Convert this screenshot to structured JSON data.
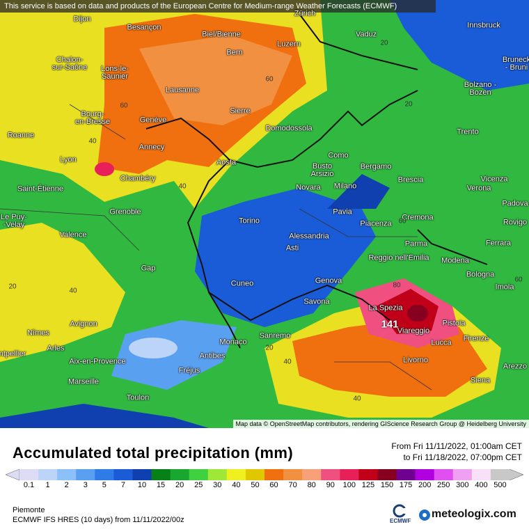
{
  "header": {
    "notice": "This service is based on data and products of the European Centre for Medium-range Weather Forecasts (ECMWF)"
  },
  "map": {
    "cities": [
      "Dijon",
      "Besançon",
      "Zürich",
      "Vaduz",
      "Innsbruck",
      "Bruneck - Bruni",
      "Chalon-\nsur-Saône",
      "Lons-le-\nSaunier",
      "Biel/Bienne",
      "Bern",
      "Luzern",
      "Lausanne",
      "Sierre",
      "Domodossola",
      "Bolzano -\nBozen",
      "Bourg-\nen-Bresse",
      "Genève",
      "Trento",
      "Roanne",
      "Annecy",
      "Como",
      "Aosta",
      "Busto\nArsizio",
      "Bergamo",
      "Lyon",
      "Chambéry",
      "Saint-Étienne",
      "Novara",
      "Milano",
      "Brescia",
      "Verona",
      "Vicenza",
      "Padova",
      "Grenoble",
      "Le Puy-\n-Velay",
      "Pavia",
      "Cremona",
      "Piacenza",
      "Torino",
      "Rovigo",
      "Valence",
      "Alessandria",
      "Asti",
      "Parma",
      "Ferrara",
      "Reggio nell'Emilia",
      "Modena",
      "Gap",
      "Bologna",
      "Genova",
      "Cuneo",
      "Imola",
      "Savona",
      "La Spezia",
      "Pistoia",
      "Viareggio",
      "Avignon",
      "Nîmes",
      "Arles",
      "Lucca",
      "Firenze",
      "ntpellier",
      "Monaco",
      "Sanremo",
      "Antibes",
      "Aix-en-Provence",
      "Fréjus",
      "Livorno",
      "Arezzo",
      "Siena",
      "Marseille",
      "Toulon"
    ],
    "contour_labels": [
      "40",
      "40",
      "40",
      "40",
      "40",
      "60",
      "60",
      "60",
      "60",
      "80",
      "20",
      "20",
      "20",
      "20"
    ],
    "peak_label": "141",
    "attribution": "Map data © OpenStreetMap contributors, rendering GIScience Research Group @ Heidelberg University"
  },
  "legend": {
    "title": "Accumulated total precipitation (mm)",
    "period_from": "From Fri 11/11/2022, 01:00am CET",
    "period_to": "to Fri 11/18/2022, 07:00pm CET",
    "scale": [
      {
        "value": 0.1,
        "color": "#dcdcf4"
      },
      {
        "value": 1,
        "color": "#bcd4f8"
      },
      {
        "value": 2,
        "color": "#8cc0f8"
      },
      {
        "value": 3,
        "color": "#5aa0f0"
      },
      {
        "value": 5,
        "color": "#2f7ce8"
      },
      {
        "value": 7,
        "color": "#1a5cd8"
      },
      {
        "value": 10,
        "color": "#1040b0"
      },
      {
        "value": 15,
        "color": "#088018"
      },
      {
        "value": 20,
        "color": "#18a830"
      },
      {
        "value": 25,
        "color": "#40d040"
      },
      {
        "value": 30,
        "color": "#a0e838"
      },
      {
        "value": 40,
        "color": "#f0f020"
      },
      {
        "value": 50,
        "color": "#e0c800"
      },
      {
        "value": 60,
        "color": "#f07010"
      },
      {
        "value": 70,
        "color": "#f09040"
      },
      {
        "value": 80,
        "color": "#f8a078"
      },
      {
        "value": 90,
        "color": "#f05080"
      },
      {
        "value": 100,
        "color": "#e8205a"
      },
      {
        "value": 125,
        "color": "#c00018"
      },
      {
        "value": 150,
        "color": "#880020"
      },
      {
        "value": 175,
        "color": "#700090"
      },
      {
        "value": 200,
        "color": "#b000e0"
      },
      {
        "value": 250,
        "color": "#e050f0"
      },
      {
        "value": 300,
        "color": "#f0a0f0"
      },
      {
        "value": 400,
        "color": "#f8e0f8"
      },
      {
        "value": 500,
        "color": "#c8c8c8"
      }
    ]
  },
  "footer": {
    "region": "Piemonte",
    "model": "ECMWF IFS HRES (10 days) from 11/11/2022/00z",
    "ecmwf_logo": "ECMWF",
    "brand": "meteologix.com"
  }
}
